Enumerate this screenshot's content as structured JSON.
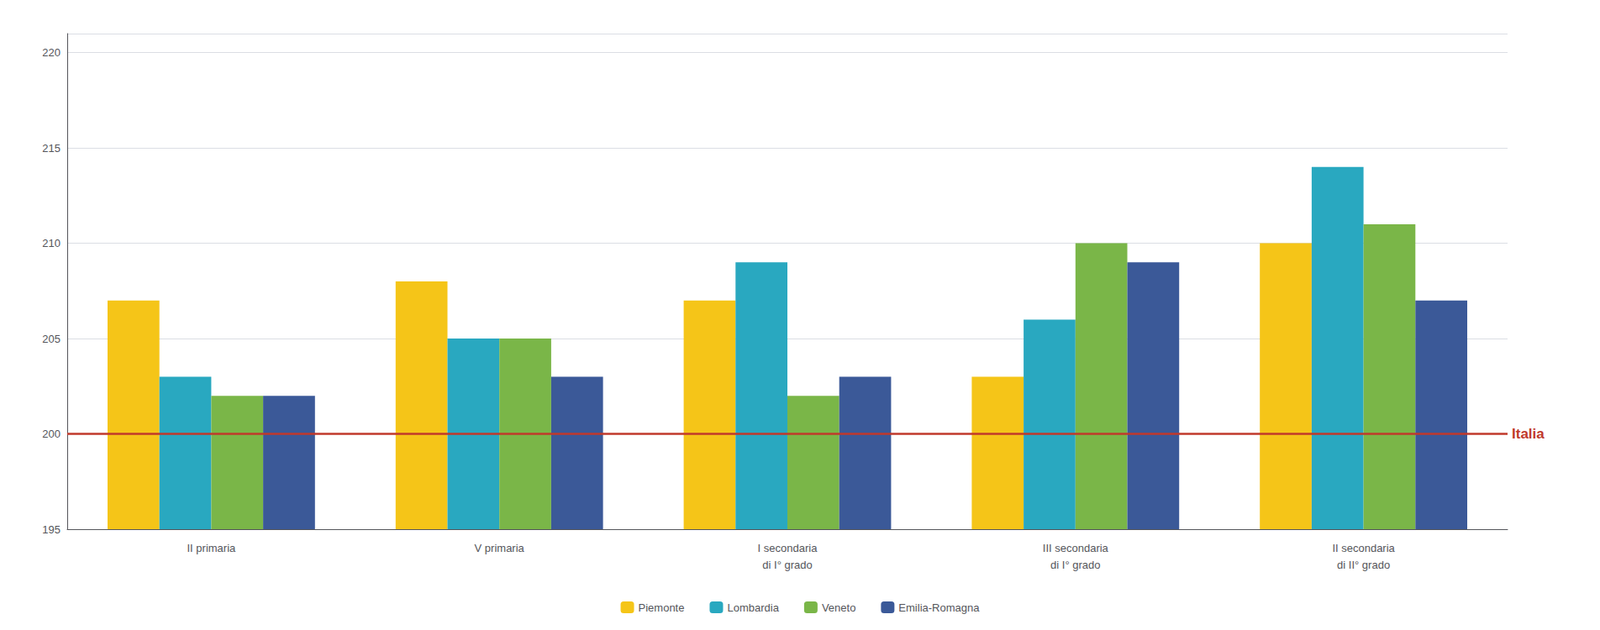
{
  "chart_data": {
    "type": "bar",
    "categories": [
      "II primaria",
      "V primaria",
      "I secondaria\ndi I° grado",
      "III secondaria\ndi I° grado",
      "II secondaria\ndi II° grado"
    ],
    "series": [
      {
        "name": "Piemonte",
        "color": "#F5C518",
        "values": [
          207,
          208,
          207,
          203,
          210
        ]
      },
      {
        "name": "Lombardia",
        "color": "#29A8C0",
        "values": [
          203,
          205,
          209,
          206,
          214
        ]
      },
      {
        "name": "Veneto",
        "color": "#7AB648",
        "values": [
          202,
          205,
          202,
          210,
          211
        ]
      },
      {
        "name": "Emilia-Romagna",
        "color": "#3B5998",
        "values": [
          202,
          203,
          203,
          209,
          207
        ]
      }
    ],
    "ylim": [
      195,
      221
    ],
    "yticks": [
      195,
      200,
      205,
      210,
      215,
      220
    ],
    "grid": true,
    "legend": "bottom",
    "annotations": [
      {
        "type": "hline",
        "y": 200,
        "text": "Italia",
        "color": "#C0392B"
      }
    ]
  }
}
